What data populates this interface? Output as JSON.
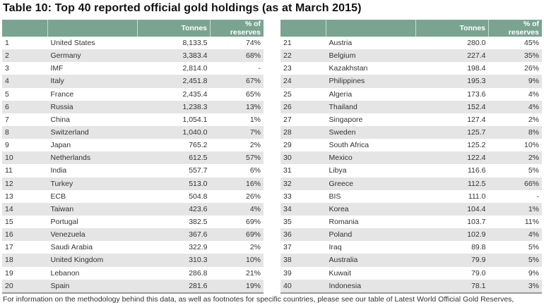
{
  "title": "Table 10: Top 40 reported official gold holdings (as at March 2015)",
  "columns": {
    "rank": "",
    "country": "",
    "tonnes": "Tonnes",
    "pct": "% of reserves"
  },
  "header_color": "#7aa392",
  "left_rows": [
    {
      "rank": "1",
      "country": "United States",
      "tonnes": "8,133.5",
      "pct": "74%"
    },
    {
      "rank": "2",
      "country": "Germany",
      "tonnes": "3,383.4",
      "pct": "68%"
    },
    {
      "rank": "3",
      "country": "IMF",
      "tonnes": "2,814.0",
      "pct": "-"
    },
    {
      "rank": "4",
      "country": "Italy",
      "tonnes": "2,451.8",
      "pct": "67%"
    },
    {
      "rank": "5",
      "country": "France",
      "tonnes": "2,435.4",
      "pct": "65%"
    },
    {
      "rank": "6",
      "country": "Russia",
      "tonnes": "1,238.3",
      "pct": "13%"
    },
    {
      "rank": "7",
      "country": "China",
      "tonnes": "1,054.1",
      "pct": "1%"
    },
    {
      "rank": "8",
      "country": "Switzerland",
      "tonnes": "1,040.0",
      "pct": "7%"
    },
    {
      "rank": "9",
      "country": "Japan",
      "tonnes": "765.2",
      "pct": "2%"
    },
    {
      "rank": "10",
      "country": "Netherlands",
      "tonnes": "612.5",
      "pct": "57%"
    },
    {
      "rank": "11",
      "country": "India",
      "tonnes": "557.7",
      "pct": "6%"
    },
    {
      "rank": "12",
      "country": "Turkey",
      "tonnes": "513.0",
      "pct": "16%"
    },
    {
      "rank": "13",
      "country": "ECB",
      "tonnes": "504.8",
      "pct": "26%"
    },
    {
      "rank": "14",
      "country": "Taiwan",
      "tonnes": "423.6",
      "pct": "4%"
    },
    {
      "rank": "15",
      "country": "Portugal",
      "tonnes": "382.5",
      "pct": "69%"
    },
    {
      "rank": "16",
      "country": "Venezuela",
      "tonnes": "367.6",
      "pct": "69%"
    },
    {
      "rank": "17",
      "country": "Saudi Arabia",
      "tonnes": "322.9",
      "pct": "2%"
    },
    {
      "rank": "18",
      "country": "United Kingdom",
      "tonnes": "310.3",
      "pct": "10%"
    },
    {
      "rank": "19",
      "country": "Lebanon",
      "tonnes": "286.8",
      "pct": "21%"
    },
    {
      "rank": "20",
      "country": "Spain",
      "tonnes": "281.6",
      "pct": "19%"
    }
  ],
  "right_rows": [
    {
      "rank": "21",
      "country": "Austria",
      "tonnes": "280.0",
      "pct": "45%"
    },
    {
      "rank": "22",
      "country": "Belgium",
      "tonnes": "227.4",
      "pct": "35%"
    },
    {
      "rank": "23",
      "country": "Kazakhstan",
      "tonnes": "198.4",
      "pct": "26%"
    },
    {
      "rank": "24",
      "country": "Philippines",
      "tonnes": "195.3",
      "pct": "9%"
    },
    {
      "rank": "25",
      "country": "Algeria",
      "tonnes": "173.6",
      "pct": "4%"
    },
    {
      "rank": "26",
      "country": "Thailand",
      "tonnes": "152.4",
      "pct": "4%"
    },
    {
      "rank": "27",
      "country": "Singapore",
      "tonnes": "127.4",
      "pct": "2%"
    },
    {
      "rank": "28",
      "country": "Sweden",
      "tonnes": "125.7",
      "pct": "8%"
    },
    {
      "rank": "29",
      "country": "South Africa",
      "tonnes": "125.2",
      "pct": "10%"
    },
    {
      "rank": "30",
      "country": "Mexico",
      "tonnes": "122.4",
      "pct": "2%"
    },
    {
      "rank": "31",
      "country": "Libya",
      "tonnes": "116.6",
      "pct": "5%"
    },
    {
      "rank": "32",
      "country": "Greece",
      "tonnes": "112.5",
      "pct": "66%"
    },
    {
      "rank": "33",
      "country": "BIS",
      "tonnes": "111.0",
      "pct": "-"
    },
    {
      "rank": "34",
      "country": "Korea",
      "tonnes": "104.4",
      "pct": "1%"
    },
    {
      "rank": "35",
      "country": "Romania",
      "tonnes": "103.7",
      "pct": "11%"
    },
    {
      "rank": "36",
      "country": "Poland",
      "tonnes": "102.9",
      "pct": "4%"
    },
    {
      "rank": "37",
      "country": "Iraq",
      "tonnes": "89.8",
      "pct": "5%"
    },
    {
      "rank": "38",
      "country": "Australia",
      "tonnes": "79.9",
      "pct": "5%"
    },
    {
      "rank": "39",
      "country": "Kuwait",
      "tonnes": "79.0",
      "pct": "9%"
    },
    {
      "rank": "40",
      "country": "Indonesia",
      "tonnes": "78.1",
      "pct": "3%"
    }
  ],
  "footnote": "For information on the methodology behind this data, as well as footnotes for specific countries, please see our table of Latest World Official Gold Reserves,"
}
